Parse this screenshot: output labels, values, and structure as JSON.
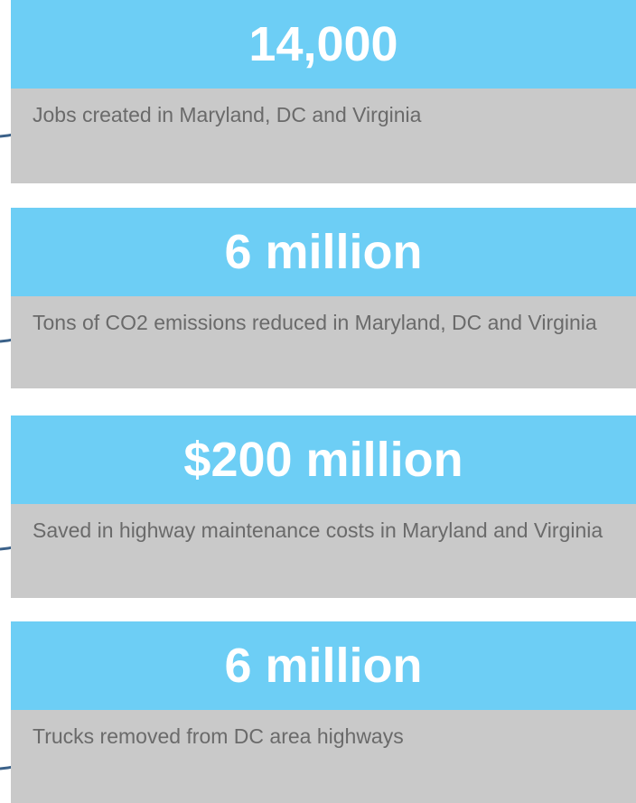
{
  "cards": [
    {
      "value": "14,000",
      "description": "Jobs created in Maryland, DC and Virginia"
    },
    {
      "value": "6 million",
      "description": "Tons of CO2 emissions reduced in Maryland, DC and Virginia"
    },
    {
      "value": "$200 million",
      "description": "Saved in highway maintenance costs in Maryland and Virginia"
    },
    {
      "value": "6 million",
      "description": "Trucks removed from DC area highways"
    }
  ]
}
